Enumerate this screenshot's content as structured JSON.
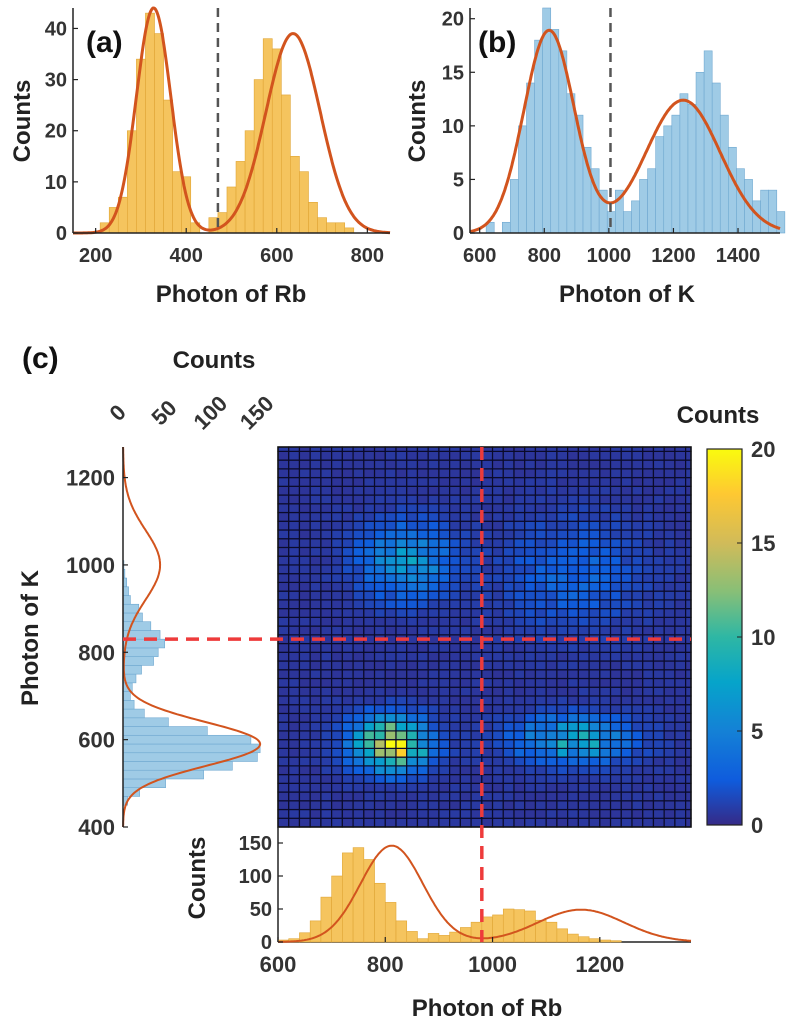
{
  "colors": {
    "rb_hist": "#f5c45e",
    "rb_hist_edge": "#e0a535",
    "k_hist": "#9fcbe6",
    "k_hist_edge": "#6fa8d0",
    "fit_line": "#d2541e",
    "threshold_ab": "#555555",
    "threshold_c": "#ee3b3b",
    "axis": "#222222"
  },
  "chart_data": [
    {
      "id": "a",
      "panel_label": "(a)",
      "type": "bar",
      "xlabel": "Photon of Rb",
      "ylabel": "Counts",
      "xlim": [
        150,
        850
      ],
      "ylim": [
        0,
        44
      ],
      "xticks": [
        200,
        400,
        600,
        800
      ],
      "yticks": [
        0,
        10,
        20,
        30,
        40
      ],
      "bin_start": 210,
      "bin_width": 20,
      "counts": [
        2,
        5,
        7,
        20,
        34,
        43,
        39,
        26,
        12,
        11,
        2,
        0,
        3,
        4,
        9,
        14,
        20,
        30,
        38,
        36,
        27,
        15,
        12,
        6,
        3,
        2,
        2,
        1,
        0
      ],
      "fit": [
        {
          "A": 44,
          "mu": 328,
          "sigma": 38
        },
        {
          "A": 39,
          "mu": 636,
          "sigma": 60
        }
      ],
      "threshold": 470
    },
    {
      "id": "b",
      "panel_label": "(b)",
      "type": "bar",
      "xlabel": "Photon of K",
      "ylabel": "Counts",
      "xlim": [
        570,
        1530
      ],
      "ylim": [
        0,
        21
      ],
      "xticks": [
        600,
        800,
        1000,
        1200,
        1400
      ],
      "yticks": [
        0,
        5,
        10,
        15,
        20
      ],
      "bin_start": 620,
      "bin_width": 25,
      "counts": [
        1,
        0,
        1,
        5,
        10,
        14,
        18,
        21,
        19,
        17,
        13,
        11,
        8,
        6,
        4,
        2,
        4,
        2,
        3,
        5,
        6,
        9,
        10,
        11,
        13,
        12,
        15,
        17,
        14,
        11,
        8,
        6,
        5,
        3,
        4,
        4,
        2
      ],
      "fit": [
        {
          "A": 18.9,
          "mu": 815,
          "sigma": 78
        },
        {
          "A": 12.4,
          "mu": 1230,
          "sigma": 115
        }
      ],
      "threshold": 1005
    },
    {
      "id": "c",
      "panel_label": "(c)",
      "type": "heatmap",
      "xlabel": "Photon of Rb",
      "ylabel": "Photon of K",
      "xlim": [
        600,
        1370
      ],
      "ylim": [
        400,
        1270
      ],
      "xticks": [
        600,
        800,
        1000,
        1200
      ],
      "yticks": [
        400,
        600,
        800,
        1000,
        1200
      ],
      "colorbar_label": "Counts",
      "colorbar_range": [
        0,
        20
      ],
      "colorbar_ticks": [
        0,
        5,
        10,
        15,
        20
      ],
      "bin_x_start": 600,
      "bin_y_start": 400,
      "bin_width": 20,
      "threshold_x": 980,
      "threshold_y": 830,
      "top_axis_label": "Counts",
      "top_axis_ticks": [
        0,
        50,
        100,
        150
      ],
      "side_hist_bin_start": 450,
      "side_hist_bin_width": 20,
      "side_hist_counts": [
        5,
        18,
        46,
        87,
        118,
        145,
        148,
        138,
        91,
        49,
        23,
        12,
        8,
        10,
        14,
        20,
        33,
        38,
        45,
        40,
        30,
        21,
        17,
        8,
        6,
        4,
        2,
        1
      ],
      "side_fit": [
        {
          "A": 148,
          "mu": 590,
          "sigma": 50
        },
        {
          "A": 40,
          "mu": 1000,
          "sigma": 80
        }
      ],
      "bottom_axis_ticks": [
        0,
        50,
        100,
        150
      ],
      "bottom_hist_bin_start": 600,
      "bottom_hist_bin_width": 20,
      "bottom_hist_counts": [
        3,
        5,
        14,
        32,
        68,
        100,
        135,
        143,
        125,
        89,
        60,
        32,
        16,
        5,
        13,
        10,
        15,
        22,
        30,
        38,
        41,
        50,
        49,
        47,
        33,
        30,
        20,
        12,
        8,
        5,
        3,
        2
      ],
      "bottom_fit": [
        {
          "A": 146,
          "mu": 812,
          "sigma": 58
        },
        {
          "A": 49,
          "mu": 1165,
          "sigma": 80
        }
      ]
    }
  ]
}
